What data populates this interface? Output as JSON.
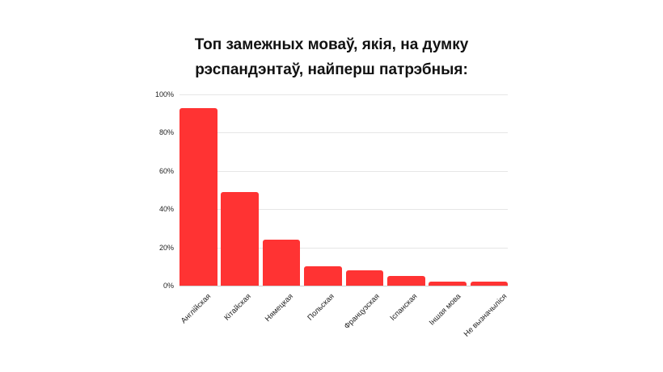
{
  "chart_data": {
    "type": "bar",
    "title": "Топ замежных моваў, якія, на думку рэспандэнтаў, найперш патрэбныя:",
    "title_lines": [
      "Топ замежных моваў, якія, на думку",
      "рэспандэнтаў, найперш патрэбныя:"
    ],
    "categories": [
      "Англійская",
      "Кітайская",
      "Нямецкая",
      "Польская",
      "Французская",
      "Іспанская",
      "Іншая мова",
      "Не вызначыліся"
    ],
    "values": [
      93,
      49,
      24,
      10,
      8,
      5,
      2,
      2
    ],
    "xlabel": "",
    "ylabel": "",
    "ylim": [
      0,
      100
    ],
    "yticks": [
      "0%",
      "20%",
      "40%",
      "60%",
      "80%",
      "100%"
    ],
    "grid": true,
    "legend": null,
    "bar_color": "#ff3333"
  }
}
